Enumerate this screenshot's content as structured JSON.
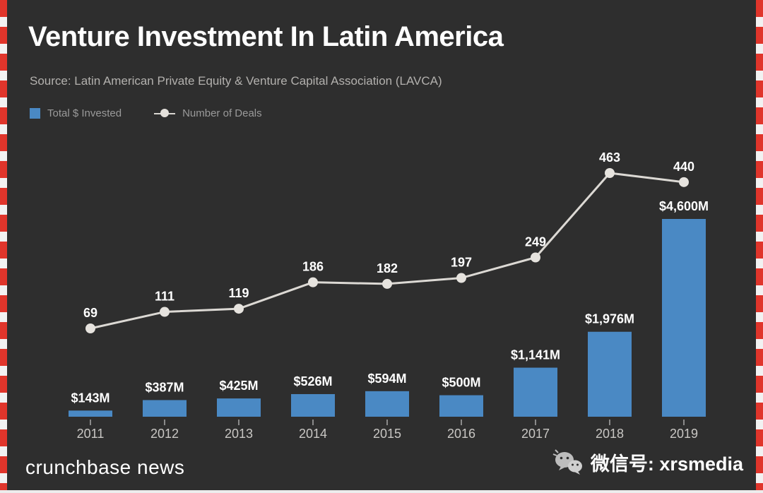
{
  "header": {
    "title": "Venture Investment In Latin America",
    "source": "Source: Latin American Private Equity & Venture Capital Association (LAVCA)"
  },
  "legend": {
    "bars": "Total $ Invested",
    "line": "Number of Deals"
  },
  "footer": {
    "brand": "crunchbase news",
    "wechat": "微信号: xrsmedia"
  },
  "colors": {
    "background": "#2e2e2e",
    "bar": "#4a89c4",
    "line": "#dcd9d4",
    "marker": "#e6e3de",
    "text": "#ffffff",
    "muted": "#9a9a9a",
    "edge_red": "#e0352b"
  },
  "chart_data": {
    "type": "bar+line",
    "title": "Venture Investment In Latin America",
    "categories": [
      "2011",
      "2012",
      "2013",
      "2014",
      "2015",
      "2016",
      "2017",
      "2018",
      "2019"
    ],
    "series": [
      {
        "name": "Total $ Invested",
        "type": "bar",
        "unit": "USD millions",
        "values": [
          143,
          387,
          425,
          526,
          594,
          500,
          1141,
          1976,
          4600
        ],
        "labels": [
          "$143M",
          "$387M",
          "$425M",
          "$526M",
          "$594M",
          "$500M",
          "$1,141M",
          "$1,976M",
          "$4,600M"
        ]
      },
      {
        "name": "Number of Deals",
        "type": "line",
        "values": [
          69,
          111,
          119,
          186,
          182,
          197,
          249,
          463,
          440
        ],
        "labels": [
          "69",
          "111",
          "119",
          "186",
          "182",
          "197",
          "249",
          "463",
          "440"
        ]
      }
    ],
    "ylim_bars": [
      0,
      4600
    ],
    "ylim_line": [
      0,
      500
    ],
    "grid": false,
    "legend_position": "top-left"
  }
}
